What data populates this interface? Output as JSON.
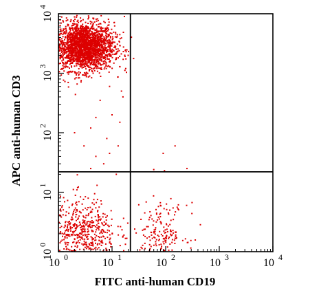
{
  "chart_data": {
    "type": "scatter",
    "xlabel": "FITC anti-human CD19",
    "ylabel": "APC anti-human CD3",
    "x_scale": "log",
    "y_scale": "log",
    "xlim": [
      1,
      10000
    ],
    "ylim": [
      1,
      10000
    ],
    "x_ticks": [
      {
        "value": 1,
        "base": "10",
        "exp": "0"
      },
      {
        "value": 10,
        "base": "10",
        "exp": "1"
      },
      {
        "value": 100,
        "base": "10",
        "exp": "2"
      },
      {
        "value": 1000,
        "base": "10",
        "exp": "3"
      },
      {
        "value": 10000,
        "base": "10",
        "exp": "4"
      }
    ],
    "y_ticks": [
      {
        "value": 1,
        "base": "10",
        "exp": "0"
      },
      {
        "value": 10,
        "base": "10",
        "exp": "1"
      },
      {
        "value": 100,
        "base": "10",
        "exp": "2"
      },
      {
        "value": 1000,
        "base": "10",
        "exp": "3"
      },
      {
        "value": 10000,
        "base": "10",
        "exp": "4"
      }
    ],
    "quadrant_gates": {
      "x": 22,
      "y": 22
    },
    "point_color": "#dd0000",
    "populations": [
      {
        "quadrant": "upper-left",
        "center": [
          3,
          2800
        ],
        "spread_log10": [
          0.28,
          0.2
        ],
        "approx_count": 2400
      },
      {
        "quadrant": "lower-left",
        "center": [
          3,
          2
        ],
        "spread_log10": [
          0.3,
          0.3
        ],
        "approx_count": 550
      },
      {
        "quadrant": "lower-right",
        "center": [
          80,
          2
        ],
        "spread_log10": [
          0.25,
          0.25
        ],
        "approx_count": 200
      }
    ],
    "sparse_points": [
      [
        3,
        60
      ],
      [
        5,
        40
      ],
      [
        7,
        30
      ],
      [
        12,
        20
      ],
      [
        13,
        60
      ],
      [
        2,
        100
      ],
      [
        9,
        45
      ],
      [
        4,
        25
      ],
      [
        150,
        60
      ],
      [
        90,
        45
      ],
      [
        60,
        24
      ],
      [
        250,
        25
      ],
      [
        95,
        23
      ],
      [
        6,
        350
      ],
      [
        14,
        150
      ],
      [
        5,
        180
      ],
      [
        4,
        120
      ],
      [
        8,
        80
      ],
      [
        10,
        200
      ],
      [
        15,
        500
      ],
      [
        16,
        400
      ],
      [
        20,
        2000
      ],
      [
        18,
        1200
      ],
      [
        17,
        9000
      ],
      [
        9,
        600
      ]
    ]
  }
}
